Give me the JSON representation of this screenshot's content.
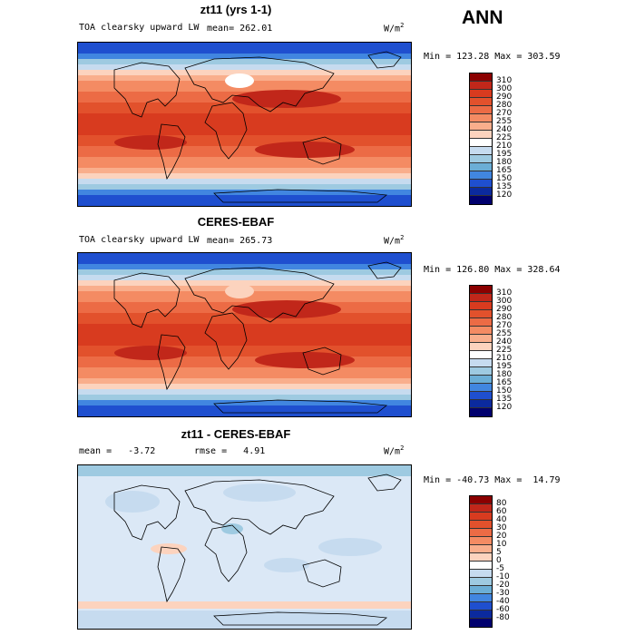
{
  "season": "ANN",
  "panels": [
    {
      "title": "zt11 (yrs 1-1)",
      "left_label": "TOA clearsky upward LW",
      "stat": "mean= 262.01",
      "units": "W/m",
      "minmax": "Min = 123.28 Max = 303.59",
      "levels": [
        "310",
        "300",
        "290",
        "280",
        "270",
        "255",
        "240",
        "225",
        "210",
        "195",
        "180",
        "165",
        "150",
        "135",
        "120"
      ],
      "colors": [
        "#8b0000",
        "#c1271a",
        "#d83b1f",
        "#e2512c",
        "#ec6b45",
        "#f48b63",
        "#f9ae8c",
        "#fcd3be",
        "#ffffff",
        "#c6dbef",
        "#9ecae1",
        "#6baed6",
        "#4186e0",
        "#1f4fcf",
        "#0b2a9e",
        "#00006e"
      ],
      "style": "absolute"
    },
    {
      "title": "CERES-EBAF",
      "left_label": "TOA clearsky upward LW",
      "stat": "mean= 265.73",
      "units": "W/m",
      "minmax": "Min = 126.80 Max = 328.64",
      "levels": [
        "310",
        "300",
        "290",
        "280",
        "270",
        "255",
        "240",
        "225",
        "210",
        "195",
        "180",
        "165",
        "150",
        "135",
        "120"
      ],
      "colors": [
        "#8b0000",
        "#c1271a",
        "#d83b1f",
        "#e2512c",
        "#ec6b45",
        "#f48b63",
        "#f9ae8c",
        "#fcd3be",
        "#ffffff",
        "#c6dbef",
        "#9ecae1",
        "#6baed6",
        "#4186e0",
        "#1f4fcf",
        "#0b2a9e",
        "#00006e"
      ],
      "style": "absolute"
    },
    {
      "title": "zt11 - CERES-EBAF",
      "left_label": "mean =   -3.72",
      "stat": "rmse =   4.91",
      "units": "W/m",
      "minmax": "Min = -40.73 Max =  14.79",
      "levels": [
        "80",
        "60",
        "40",
        "30",
        "20",
        "10",
        "5",
        "0",
        "-5",
        "-10",
        "-20",
        "-30",
        "-40",
        "-60",
        "-80"
      ],
      "colors": [
        "#8b0000",
        "#c1271a",
        "#d83b1f",
        "#e2512c",
        "#ec6b45",
        "#f48b63",
        "#f9ae8c",
        "#fcd3be",
        "#ffffff",
        "#c6dbef",
        "#9ecae1",
        "#6baed6",
        "#4186e0",
        "#1f4fcf",
        "#0b2a9e",
        "#00006e"
      ],
      "style": "diff"
    }
  ]
}
